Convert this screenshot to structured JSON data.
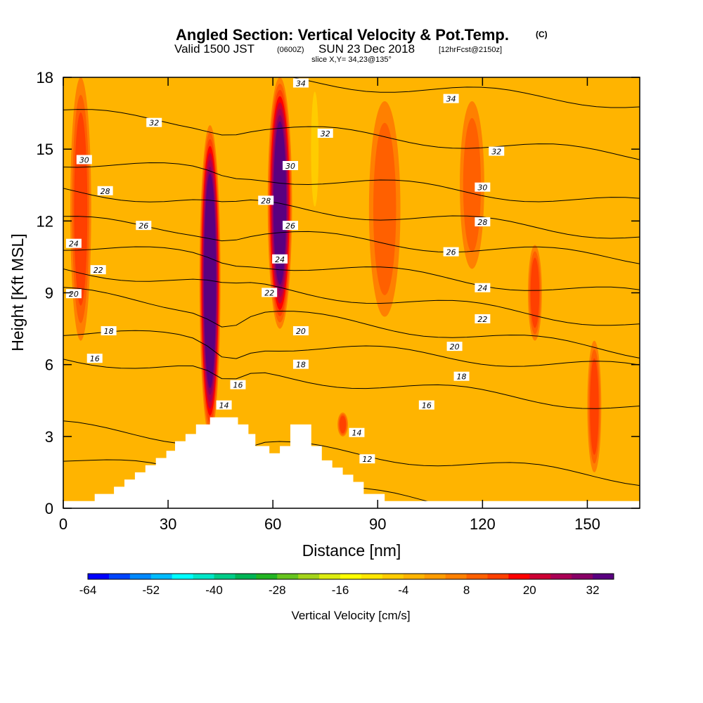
{
  "title": {
    "main": "Angled Section: Vertical Velocity & Pot.Temp.",
    "main_suffix": "(C)",
    "valid_prefix": "Valid 1500 JST",
    "valid_z": "(0600Z)",
    "valid_date": "SUN 23 Dec 2018",
    "valid_fcst": "[12hrFcst@2150z]",
    "slice": "slice X,Y= 34,23@135°"
  },
  "chart_data": {
    "type": "heatmap",
    "xlabel": "Distance [nm]",
    "ylabel": "Height [Kft MSL]",
    "xlim": [
      0,
      165
    ],
    "ylim": [
      0,
      18
    ],
    "x_ticks": [
      0,
      30,
      60,
      90,
      120,
      150
    ],
    "y_ticks": [
      0,
      3,
      6,
      9,
      12,
      15,
      18
    ],
    "colorbar": {
      "title": "Vertical Velocity [cm/s]",
      "range": [
        -64,
        36
      ],
      "step": 4,
      "tick_labels": [
        -64,
        -52,
        -40,
        -28,
        -16,
        -4,
        8,
        20,
        32
      ],
      "colors": [
        "#0000ff",
        "#0044ff",
        "#0088ff",
        "#00bbff",
        "#00ffff",
        "#00e6c8",
        "#00cc88",
        "#00b455",
        "#22b422",
        "#66c41e",
        "#a4d41a",
        "#dcec10",
        "#ffff00",
        "#ffe600",
        "#ffcc00",
        "#ffb400",
        "#ff9c00",
        "#ff8000",
        "#ff6000",
        "#ff4000",
        "#ff0000",
        "#cc0033",
        "#aa0055",
        "#880066",
        "#5a0080"
      ]
    },
    "velocity_field": [
      {
        "x": 5,
        "y_top": 18,
        "y_bottom": 7,
        "width": 6,
        "value": 10
      },
      {
        "x": 42,
        "y_top": 16,
        "y_bottom": 3,
        "width": 6,
        "value": 34
      },
      {
        "x": 62,
        "y_top": 18,
        "y_bottom": 7.5,
        "width": 7,
        "value": 30
      },
      {
        "x": 72,
        "y_top": 18,
        "y_bottom": 12,
        "width": 3,
        "value": -8
      },
      {
        "x": 80,
        "y_top": 4,
        "y_bottom": 3,
        "width": 3,
        "value": 12
      },
      {
        "x": 92,
        "y_top": 17,
        "y_bottom": 8,
        "width": 9,
        "value": 8
      },
      {
        "x": 117,
        "y_top": 17,
        "y_bottom": 10,
        "width": 7,
        "value": 6
      },
      {
        "x": 135,
        "y_top": 11,
        "y_bottom": 7,
        "width": 4,
        "value": 10
      },
      {
        "x": 152,
        "y_top": 7,
        "y_bottom": 1.5,
        "width": 4,
        "value": 12
      }
    ],
    "terrain_profile": [
      [
        0,
        0.3
      ],
      [
        9,
        0.3
      ],
      [
        9,
        0.6
      ],
      [
        14.5,
        0.6
      ],
      [
        14.5,
        0.9
      ],
      [
        17.5,
        0.9
      ],
      [
        17.5,
        1.2
      ],
      [
        20.5,
        1.2
      ],
      [
        20.5,
        1.5
      ],
      [
        23.5,
        1.5
      ],
      [
        23.5,
        1.8
      ],
      [
        26.5,
        1.8
      ],
      [
        26.5,
        2.1
      ],
      [
        29.5,
        2.1
      ],
      [
        29.5,
        2.4
      ],
      [
        32,
        2.4
      ],
      [
        32,
        2.8
      ],
      [
        35,
        2.8
      ],
      [
        35,
        3.1
      ],
      [
        38,
        3.1
      ],
      [
        38,
        3.5
      ],
      [
        42,
        3.5
      ],
      [
        42,
        3.8
      ],
      [
        50,
        3.8
      ],
      [
        50,
        3.5
      ],
      [
        53,
        3.5
      ],
      [
        53,
        3.1
      ],
      [
        55,
        3.1
      ],
      [
        55,
        2.6
      ],
      [
        59,
        2.6
      ],
      [
        59,
        2.3
      ],
      [
        62,
        2.3
      ],
      [
        62,
        2.6
      ],
      [
        65,
        2.6
      ],
      [
        65,
        3.5
      ],
      [
        71,
        3.5
      ],
      [
        71,
        2.6
      ],
      [
        74,
        2.6
      ],
      [
        74,
        2
      ],
      [
        77,
        2
      ],
      [
        77,
        1.7
      ],
      [
        80,
        1.7
      ],
      [
        80,
        1.4
      ],
      [
        83,
        1.4
      ],
      [
        83,
        1.1
      ],
      [
        86,
        1.1
      ],
      [
        86,
        0.6
      ],
      [
        92,
        0.6
      ],
      [
        92,
        0.3
      ],
      [
        165,
        0.3
      ]
    ],
    "theta_contours": [
      {
        "label": 12,
        "left_y": 2.1,
        "right_y": -0.8,
        "lx": 87,
        "ly": 2.05
      },
      {
        "label": 14,
        "left_y": 3.4,
        "right_y": 1.2,
        "lx": 46,
        "ly": 4.3
      },
      {
        "label": 14,
        "left_y": 3.4,
        "right_y": 1.2,
        "lx": 84,
        "ly": 3.15
      },
      {
        "label": 16,
        "left_y": 6.3,
        "right_y": 4.2,
        "lx": 50,
        "ly": 5.15
      },
      {
        "label": 16,
        "left_y": 6.3,
        "right_y": 4.2,
        "lx": 9,
        "ly": 6.25
      },
      {
        "label": 16,
        "left_y": 6.3,
        "right_y": 4.2,
        "lx": 104,
        "ly": 4.3
      },
      {
        "label": 18,
        "left_y": 7.4,
        "right_y": 5.8,
        "lx": 13,
        "ly": 7.4
      },
      {
        "label": 18,
        "left_y": 7.4,
        "right_y": 5.8,
        "lx": 68,
        "ly": 6.0
      },
      {
        "label": 18,
        "left_y": 7.4,
        "right_y": 5.8,
        "lx": 114,
        "ly": 5.5
      },
      {
        "label": 20,
        "left_y": 9.0,
        "right_y": 6.5,
        "lx": 3,
        "ly": 8.95
      },
      {
        "label": 20,
        "left_y": 9.0,
        "right_y": 6.5,
        "lx": 68,
        "ly": 7.4
      },
      {
        "label": 20,
        "left_y": 9.0,
        "right_y": 6.5,
        "lx": 112,
        "ly": 6.75
      },
      {
        "label": 22,
        "left_y": 10.0,
        "right_y": 7.7,
        "lx": 10,
        "ly": 9.95
      },
      {
        "label": 22,
        "left_y": 10.0,
        "right_y": 7.7,
        "lx": 59,
        "ly": 9.0
      },
      {
        "label": 22,
        "left_y": 10.0,
        "right_y": 7.7,
        "lx": 120,
        "ly": 7.9
      },
      {
        "label": 24,
        "left_y": 11.0,
        "right_y": 8.9,
        "lx": 3,
        "ly": 11.05
      },
      {
        "label": 24,
        "left_y": 11.0,
        "right_y": 8.9,
        "lx": 62,
        "ly": 10.4
      },
      {
        "label": 24,
        "left_y": 11.0,
        "right_y": 8.9,
        "lx": 120,
        "ly": 9.2
      },
      {
        "label": 26,
        "left_y": 12.0,
        "right_y": 10.4,
        "lx": 23,
        "ly": 11.8
      },
      {
        "label": 26,
        "left_y": 12.0,
        "right_y": 10.4,
        "lx": 65,
        "ly": 11.8
      },
      {
        "label": 26,
        "left_y": 12.0,
        "right_y": 10.4,
        "lx": 111,
        "ly": 10.7
      },
      {
        "label": 28,
        "left_y": 13.3,
        "right_y": 11.4,
        "lx": 12,
        "ly": 13.25
      },
      {
        "label": 28,
        "left_y": 13.3,
        "right_y": 11.4,
        "lx": 58,
        "ly": 12.85
      },
      {
        "label": 28,
        "left_y": 13.3,
        "right_y": 11.4,
        "lx": 120,
        "ly": 11.95
      },
      {
        "label": 30,
        "left_y": 14.5,
        "right_y": 12.7,
        "lx": 6,
        "ly": 14.55
      },
      {
        "label": 30,
        "left_y": 14.5,
        "right_y": 12.7,
        "lx": 65,
        "ly": 14.3
      },
      {
        "label": 30,
        "left_y": 14.5,
        "right_y": 12.7,
        "lx": 120,
        "ly": 13.4
      },
      {
        "label": 32,
        "left_y": 16.5,
        "right_y": 14.7,
        "lx": 26,
        "ly": 16.1
      },
      {
        "label": 32,
        "left_y": 16.5,
        "right_y": 14.7,
        "lx": 75,
        "ly": 15.65
      },
      {
        "label": 32,
        "left_y": 16.5,
        "right_y": 14.7,
        "lx": 124,
        "ly": 14.9
      },
      {
        "label": 34,
        "left_y": 18.5,
        "right_y": 16.9,
        "lx": 68,
        "ly": 17.75
      },
      {
        "label": 34,
        "left_y": 18.5,
        "right_y": 16.9,
        "lx": 111,
        "ly": 17.1
      }
    ]
  }
}
